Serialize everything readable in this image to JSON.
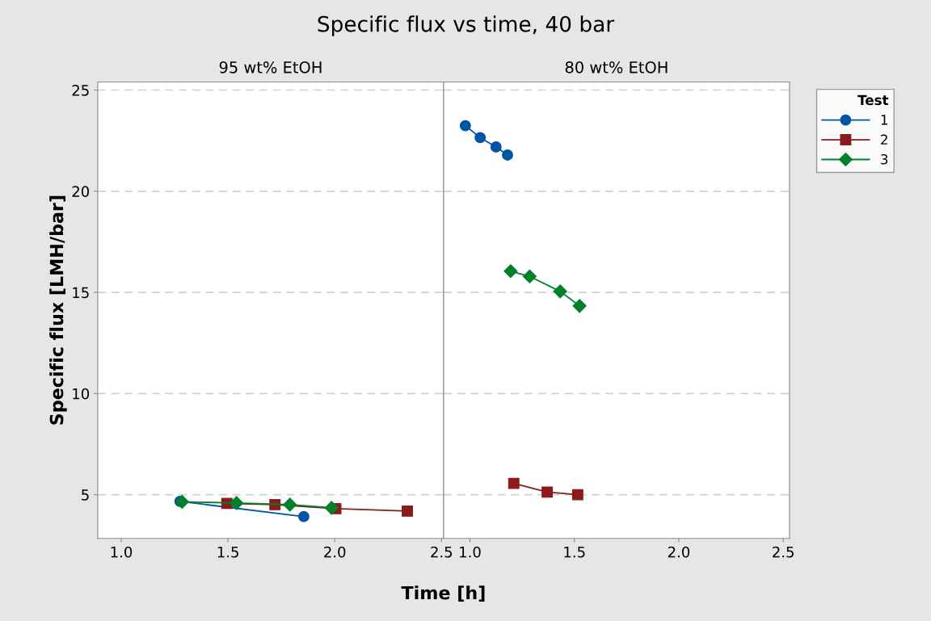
{
  "chart_data": [
    {
      "type": "line",
      "title": "Specific flux vs time, 40 bar",
      "subtitle": "95 wt% EtOH",
      "xlabel": "Time [h]",
      "ylabel": "Specific flux [LMH/bar]",
      "xlim": [
        0.89,
        2.51
      ],
      "xticks": [
        {
          "value": 1.0,
          "label": "1.0"
        },
        {
          "value": 1.5,
          "label": "1.5"
        },
        {
          "value": 2.0,
          "label": "2.0"
        },
        {
          "value": 2.5,
          "label": "2.5"
        }
      ],
      "ylim": [
        2.84,
        25.4
      ],
      "yticks": [
        5,
        10,
        15,
        20,
        25
      ],
      "grid": "y",
      "legend": "right",
      "legend_title": "Test",
      "series": [
        {
          "name": "1",
          "color": "#0054a6",
          "marker": "circle",
          "x": [
            1.275,
            1.855
          ],
          "values": [
            4.67,
            3.92
          ]
        },
        {
          "name": "2",
          "color": "#8b1a1a",
          "marker": "square",
          "x": [
            1.495,
            1.72,
            2.005,
            2.34
          ],
          "values": [
            4.57,
            4.51,
            4.31,
            4.19
          ]
        },
        {
          "name": "3",
          "color": "#00802b",
          "marker": "diamond",
          "x": [
            1.285,
            1.54,
            1.79,
            1.985
          ],
          "values": [
            4.65,
            4.59,
            4.51,
            4.35
          ]
        }
      ]
    },
    {
      "type": "line",
      "subtitle": "80 wt% EtOH",
      "xlim": [
        0.874,
        2.53
      ],
      "xticks": [
        {
          "value": 1.0,
          "label": "1.0"
        },
        {
          "value": 1.5,
          "label": "1.5"
        },
        {
          "value": 2.0,
          "label": "2.0"
        },
        {
          "value": 2.5,
          "label": "2.5"
        }
      ],
      "ylim": [
        2.84,
        25.4
      ],
      "yticks": [
        5,
        10,
        15,
        20,
        25
      ],
      "tick_labels": "x",
      "grid": "y",
      "series": [
        {
          "name": "1",
          "color": "#0054a6",
          "marker": "circle",
          "x": [
            0.978,
            1.049,
            1.125,
            1.18
          ],
          "values": [
            23.24,
            22.65,
            22.19,
            21.79
          ]
        },
        {
          "name": "2",
          "color": "#8b1a1a",
          "marker": "square",
          "x": [
            1.21,
            1.37,
            1.516
          ],
          "values": [
            5.56,
            5.13,
            5.0
          ]
        },
        {
          "name": "3",
          "color": "#00802b",
          "marker": "diamond",
          "x": [
            1.195,
            1.286,
            1.432,
            1.525
          ],
          "values": [
            16.05,
            15.79,
            15.05,
            14.33
          ]
        }
      ]
    }
  ]
}
